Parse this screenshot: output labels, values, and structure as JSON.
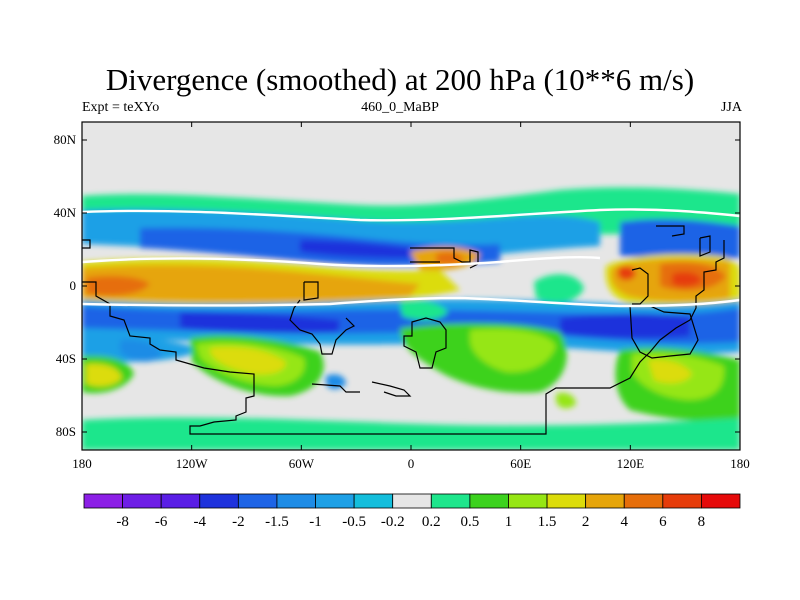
{
  "title": "Divergence (smoothed) at 200 hPa (10**6 m/s)",
  "left_string": "Expt = teXYo",
  "center_string": "460_0_MaBP",
  "right_string": "JJA",
  "map": {
    "projection": "cylindrical equidistant",
    "background_color": "#e6e6e6",
    "x_ticks": [
      "180",
      "120W",
      "60W",
      "0",
      "60E",
      "120E",
      "180"
    ],
    "y_ticks": [
      "80N",
      "40N",
      "0",
      "40S",
      "80S"
    ]
  },
  "colorbar": {
    "colors": [
      "#8c1fe6",
      "#6e1ee6",
      "#5a1ee6",
      "#1e32dc",
      "#1e64e6",
      "#1e8ce6",
      "#1ea0e6",
      "#14bedc",
      "#e6e6e6",
      "#1ee68c",
      "#3cd21e",
      "#96e614",
      "#dcdc0a",
      "#e6a50a",
      "#e66e0a",
      "#e63c0a",
      "#e60a0a"
    ],
    "labels": [
      "-8",
      "-6",
      "-4",
      "-2",
      "-1.5",
      "-1",
      "-0.5",
      "-0.2",
      "0.2",
      "0.5",
      "1",
      "1.5",
      "2",
      "4",
      "6",
      "8"
    ]
  }
}
